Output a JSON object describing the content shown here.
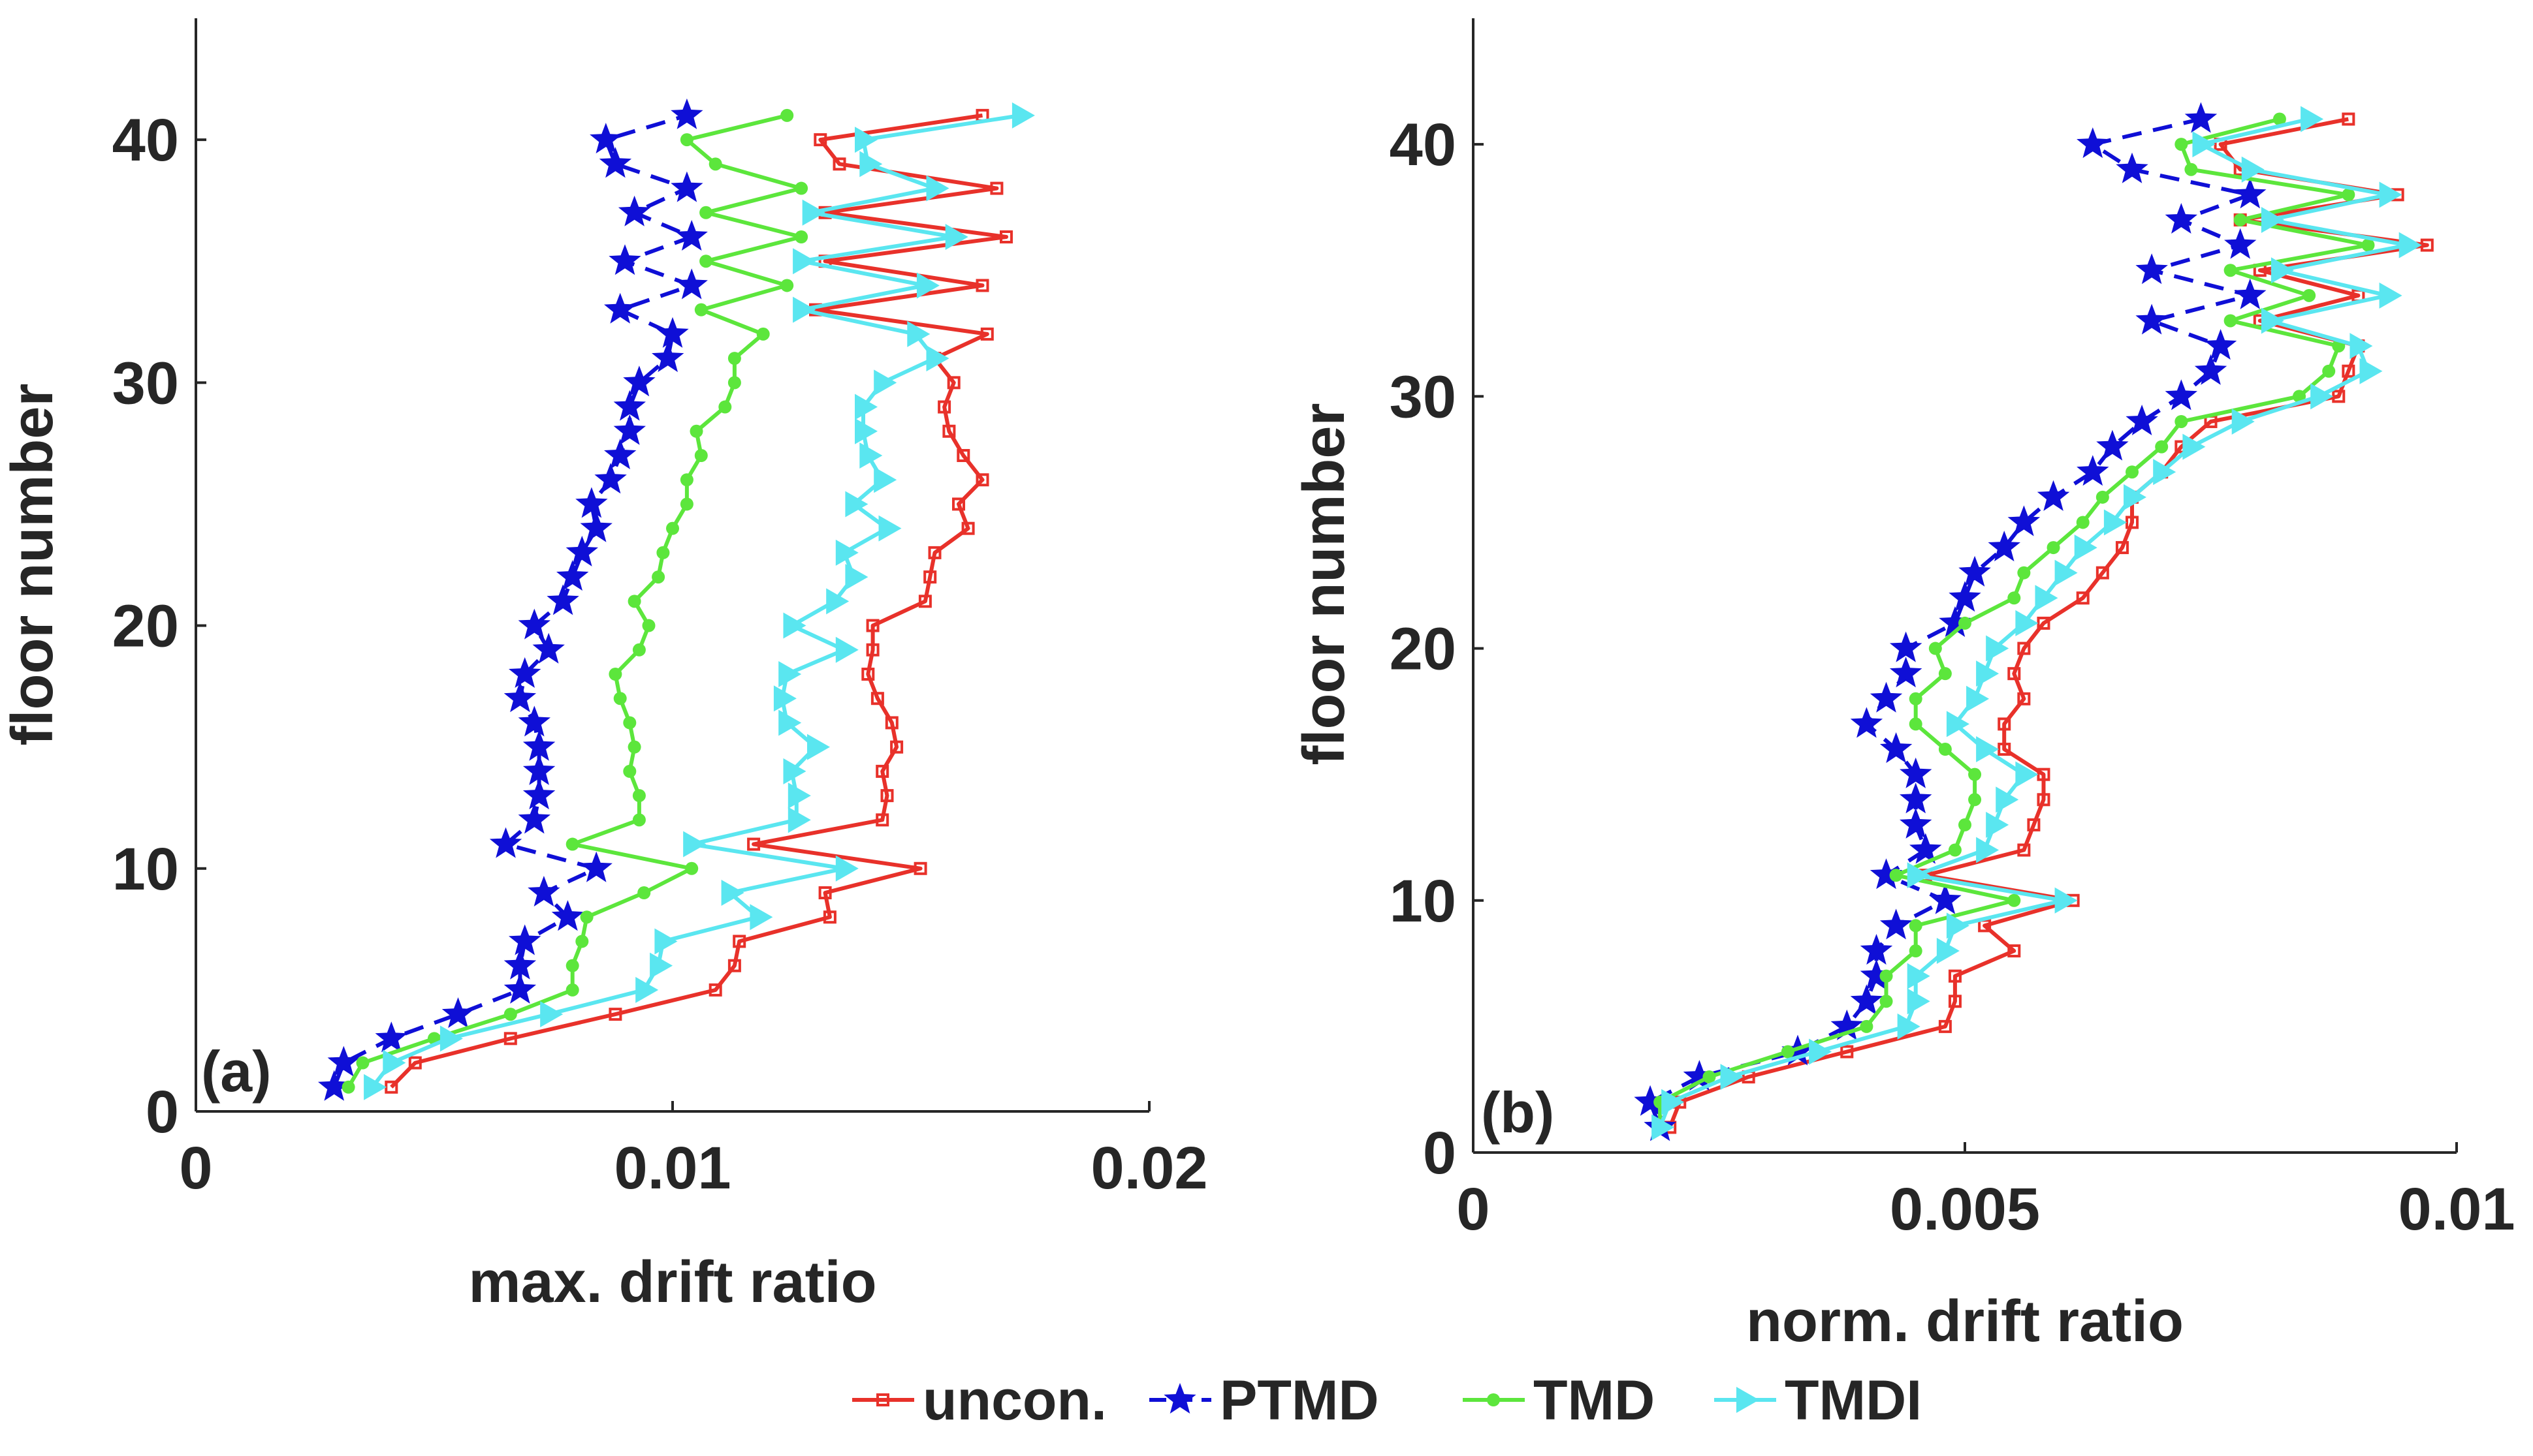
{
  "legend": {
    "entries": [
      {
        "label": "uncon.",
        "color": "#e8312a",
        "marker": "square",
        "dash": "solid"
      },
      {
        "label": "PTMD",
        "color": "#0f0fd6",
        "marker": "star",
        "dash": "dashed"
      },
      {
        "label": "TMD",
        "color": "#5ce63c",
        "marker": "circle",
        "dash": "solid"
      },
      {
        "label": "TMDI",
        "color": "#5ae6f0",
        "marker": "triangle-right",
        "dash": "solid"
      }
    ]
  },
  "chart_data": [
    {
      "type": "line",
      "panel_label": "(a)",
      "xlabel": "max. drift ratio",
      "ylabel": "floor number",
      "xlim": [
        0,
        0.02
      ],
      "ylim": [
        0,
        45
      ],
      "xticks": [
        0,
        0.01,
        0.02
      ],
      "xtick_labels": [
        "0",
        "0.01",
        "0.02"
      ],
      "yticks": [
        0,
        10,
        20,
        30,
        40
      ],
      "ytick_labels": [
        "0",
        "10",
        "20",
        "30",
        "40"
      ],
      "floors": [
        1,
        2,
        3,
        4,
        5,
        6,
        7,
        8,
        9,
        10,
        11,
        12,
        13,
        14,
        15,
        16,
        17,
        18,
        19,
        20,
        21,
        22,
        23,
        24,
        25,
        26,
        27,
        28,
        29,
        30,
        31,
        32,
        33,
        34,
        35,
        36,
        37,
        38,
        39,
        40,
        41
      ],
      "series": [
        {
          "name": "uncon.",
          "values": [
            0.0041,
            0.0046,
            0.0066,
            0.0088,
            0.0109,
            0.0113,
            0.0114,
            0.0133,
            0.0132,
            0.0152,
            0.0117,
            0.0144,
            0.0145,
            0.0144,
            0.0147,
            0.0146,
            0.0143,
            0.0141,
            0.0142,
            0.0142,
            0.0153,
            0.0154,
            0.0155,
            0.0162,
            0.016,
            0.0165,
            0.0161,
            0.0158,
            0.0157,
            0.0159,
            0.0155,
            0.0166,
            0.013,
            0.0165,
            0.0132,
            0.017,
            0.0132,
            0.0168,
            0.0135,
            0.0131,
            0.0165
          ]
        },
        {
          "name": "PTMD",
          "values": [
            0.0029,
            0.0031,
            0.0041,
            0.0055,
            0.0068,
            0.0068,
            0.0069,
            0.0078,
            0.0073,
            0.0084,
            0.0065,
            0.0071,
            0.0072,
            0.0072,
            0.0072,
            0.0071,
            0.0068,
            0.0069,
            0.0074,
            0.0071,
            0.0077,
            0.0079,
            0.0081,
            0.0084,
            0.0083,
            0.0087,
            0.0089,
            0.0091,
            0.0091,
            0.0093,
            0.0099,
            0.01,
            0.0089,
            0.0104,
            0.009,
            0.0104,
            0.0092,
            0.0103,
            0.0088,
            0.0086,
            0.0103
          ]
        },
        {
          "name": "TMD",
          "values": [
            0.0032,
            0.0035,
            0.005,
            0.0066,
            0.0079,
            0.0079,
            0.0081,
            0.0082,
            0.0094,
            0.0104,
            0.0079,
            0.0093,
            0.0093,
            0.0091,
            0.0092,
            0.0091,
            0.0089,
            0.0088,
            0.0093,
            0.0095,
            0.0092,
            0.0097,
            0.0098,
            0.01,
            0.0103,
            0.0103,
            0.0106,
            0.0105,
            0.0111,
            0.0113,
            0.0113,
            0.0119,
            0.0106,
            0.0124,
            0.0107,
            0.0127,
            0.0107,
            0.0127,
            0.0109,
            0.0103,
            0.0124
          ]
        },
        {
          "name": "TMDI",
          "values": [
            0.0037,
            0.0041,
            0.0053,
            0.0074,
            0.0094,
            0.0097,
            0.0098,
            0.0118,
            0.0112,
            0.0136,
            0.0104,
            0.0126,
            0.0126,
            0.0125,
            0.013,
            0.0124,
            0.0123,
            0.0124,
            0.0136,
            0.0125,
            0.0134,
            0.0138,
            0.0136,
            0.0145,
            0.0138,
            0.0144,
            0.0141,
            0.014,
            0.014,
            0.0144,
            0.0155,
            0.0151,
            0.0127,
            0.0153,
            0.0127,
            0.0159,
            0.0129,
            0.0155,
            0.0141,
            0.014,
            0.0173
          ]
        }
      ]
    },
    {
      "type": "line",
      "panel_label": "(b)",
      "xlabel": "norm. drift ratio",
      "ylabel": "floor number",
      "xlim": [
        0,
        0.01
      ],
      "ylim": [
        0,
        45
      ],
      "xticks": [
        0,
        0.005,
        0.01
      ],
      "xtick_labels": [
        "0",
        "0.005",
        "0.01"
      ],
      "yticks": [
        0,
        10,
        20,
        30,
        40
      ],
      "ytick_labels": [
        "0",
        "10",
        "20",
        "30",
        "40"
      ],
      "floors": [
        1,
        2,
        3,
        4,
        5,
        6,
        7,
        8,
        9,
        10,
        11,
        12,
        13,
        14,
        15,
        16,
        17,
        18,
        19,
        20,
        21,
        22,
        23,
        24,
        25,
        26,
        27,
        28,
        29,
        30,
        31,
        32,
        33,
        34,
        35,
        36,
        37,
        38,
        39,
        40,
        41
      ],
      "series": [
        {
          "name": "uncon.",
          "values": [
            0.002,
            0.0021,
            0.0028,
            0.0038,
            0.0048,
            0.0049,
            0.0049,
            0.0055,
            0.0052,
            0.0061,
            0.0046,
            0.0056,
            0.0057,
            0.0058,
            0.0058,
            0.0054,
            0.0054,
            0.0056,
            0.0055,
            0.0056,
            0.0058,
            0.0062,
            0.0064,
            0.0066,
            0.0067,
            0.0067,
            0.007,
            0.0072,
            0.0075,
            0.0088,
            0.0089,
            0.009,
            0.008,
            0.009,
            0.008,
            0.0097,
            0.0078,
            0.0094,
            0.0078,
            0.0076,
            0.0089
          ]
        },
        {
          "name": "PTMD",
          "values": [
            0.0019,
            0.0018,
            0.0023,
            0.0033,
            0.0038,
            0.004,
            0.0041,
            0.0041,
            0.0043,
            0.0048,
            0.0042,
            0.0046,
            0.0045,
            0.0045,
            0.0045,
            0.0043,
            0.004,
            0.0042,
            0.0044,
            0.0044,
            0.0049,
            0.005,
            0.0051,
            0.0054,
            0.0056,
            0.0059,
            0.0063,
            0.0065,
            0.0068,
            0.0072,
            0.0075,
            0.0076,
            0.0069,
            0.0079,
            0.0069,
            0.0078,
            0.0072,
            0.0079,
            0.0067,
            0.0063,
            0.0074
          ]
        },
        {
          "name": "TMD",
          "values": [
            0.0019,
            0.0019,
            0.0024,
            0.0032,
            0.004,
            0.0042,
            0.0042,
            0.0045,
            0.0045,
            0.0055,
            0.0043,
            0.0049,
            0.005,
            0.0051,
            0.0051,
            0.0048,
            0.0045,
            0.0045,
            0.0048,
            0.0047,
            0.005,
            0.0055,
            0.0056,
            0.0059,
            0.0062,
            0.0064,
            0.0067,
            0.007,
            0.0072,
            0.0084,
            0.0087,
            0.0088,
            0.0077,
            0.0085,
            0.0077,
            0.0091,
            0.0078,
            0.0089,
            0.0073,
            0.0072,
            0.0082
          ]
        },
        {
          "name": "TMDI",
          "values": [
            0.0019,
            0.002,
            0.0026,
            0.0035,
            0.0044,
            0.0045,
            0.0045,
            0.0048,
            0.0049,
            0.006,
            0.0045,
            0.0052,
            0.0053,
            0.0054,
            0.0056,
            0.0052,
            0.0049,
            0.0051,
            0.0052,
            0.0053,
            0.0056,
            0.0058,
            0.006,
            0.0062,
            0.0065,
            0.0067,
            0.007,
            0.0073,
            0.0078,
            0.0086,
            0.0091,
            0.009,
            0.0081,
            0.0093,
            0.0082,
            0.0095,
            0.0081,
            0.0093,
            0.0079,
            0.0074,
            0.0085
          ]
        }
      ]
    }
  ]
}
